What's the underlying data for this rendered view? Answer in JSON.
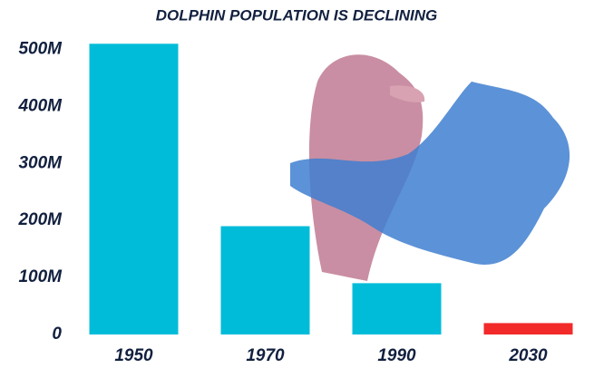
{
  "chart_data": {
    "type": "bar",
    "title": "DOLPHIN POPULATION IS DECLINING",
    "categories": [
      "1950",
      "1970",
      "1990",
      "2030"
    ],
    "values": [
      510000000,
      190000000,
      90000000,
      20000000
    ],
    "colors": [
      "#00bcd9",
      "#00bcd9",
      "#00bcd9",
      "#f22a2a"
    ],
    "ylim": [
      0,
      520000000
    ],
    "yticks": [
      0,
      {
        "value": 100000000,
        "label": "100M"
      },
      {
        "value": 200000000,
        "label": "200M"
      },
      {
        "value": 300000000,
        "label": "300M"
      },
      {
        "value": 400000000,
        "label": "400M"
      },
      {
        "value": 500000000,
        "label": "500M"
      }
    ],
    "grid": false
  }
}
